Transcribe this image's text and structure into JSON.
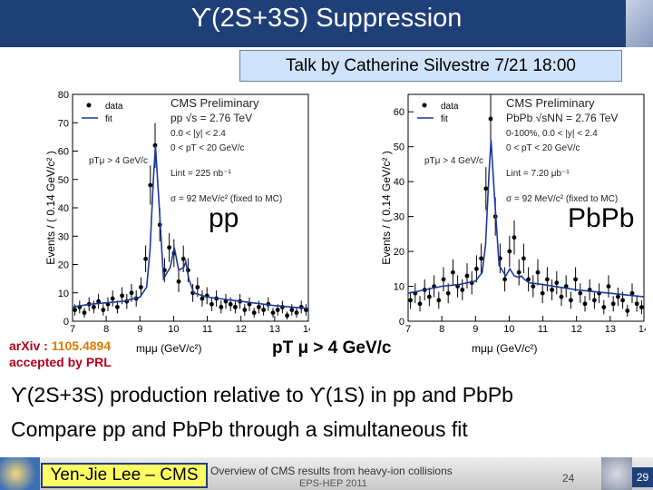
{
  "slide": {
    "title": "ϒ(2S+3S) Suppression",
    "talk_box": "Talk by Catherine Silvestre 7/21 18:00",
    "arxiv_prefix": "arXiv : ",
    "arxiv_number": "1105.4894",
    "arxiv_status": "accepted by PRL",
    "pt_cut": "pT μ > 4 GeV/c",
    "line1": "ϒ(2S+3S) production relative to ϒ(1S) in pp and PbPb",
    "line2": "Compare pp and PbPb through a simultaneous fit"
  },
  "footer": {
    "author": "Yen-Jie Lee – CMS",
    "talk_title": "Overview of CMS results from heavy-ion collisions",
    "conference": "EPS-HEP 2011",
    "slide_number": "24",
    "page_number": "29"
  },
  "colors": {
    "title_bar": "#1f3f78",
    "talk_box": "#cfe3fb",
    "fit_line": "#1a3a9a",
    "arxiv": "#b3001b",
    "author_box": "#ffff66"
  },
  "chart_data": [
    {
      "type": "scatter",
      "panel_label": "pp",
      "ylabel": "Events / ( 0.14 GeV/c² )",
      "xlabel": "mμμ (GeV/c²)",
      "xlim": [
        7,
        14
      ],
      "ylim": [
        0,
        80
      ],
      "x_ticks": [
        "7",
        "8",
        "9",
        "10",
        "11",
        "12",
        "13",
        "14"
      ],
      "y_ticks": [
        "0",
        "10",
        "20",
        "30",
        "40",
        "50",
        "60",
        "70",
        "80"
      ],
      "legend": [
        "data",
        "fit"
      ],
      "annotations": [
        "CMS Preliminary",
        "pp √s = 2.76 TeV",
        "0.0 < |y| < 2.4",
        "0 < pT < 20 GeV/c",
        "pTμ > 4 GeV/c",
        "Lint = 225 nb⁻¹",
        "σ = 92 MeV/c² (fixed to MC)"
      ],
      "series": [
        {
          "values_x": [
            7.07,
            7.21,
            7.35,
            7.49,
            7.63,
            7.77,
            7.91,
            8.05,
            8.19,
            8.33,
            8.47,
            8.61,
            8.75,
            8.89,
            9.03,
            9.17,
            9.31,
            9.45,
            9.59,
            9.73,
            9.87,
            10.01,
            10.15,
            10.29,
            10.43,
            10.57,
            10.71,
            10.85,
            10.99,
            11.13,
            11.27,
            11.41,
            11.55,
            11.69,
            11.83,
            11.97,
            12.11,
            12.25,
            12.39,
            12.53,
            12.67,
            12.81,
            12.95,
            13.09,
            13.23,
            13.37,
            13.51,
            13.65,
            13.79,
            13.93
          ],
          "values_y": [
            4,
            5,
            3,
            6,
            5,
            7,
            4,
            6,
            8,
            5,
            9,
            7,
            10,
            8,
            12,
            22,
            48,
            62,
            34,
            18,
            26,
            24,
            14,
            22,
            18,
            10,
            12,
            8,
            9,
            6,
            8,
            5,
            7,
            6,
            5,
            7,
            4,
            6,
            3,
            5,
            4,
            6,
            3,
            4,
            5,
            2,
            4,
            3,
            5,
            4
          ]
        }
      ],
      "fit": {
        "x": [
          7.0,
          7.5,
          8.0,
          8.5,
          9.0,
          9.2,
          9.3,
          9.4,
          9.46,
          9.55,
          9.7,
          9.9,
          10.02,
          10.15,
          10.3,
          10.36,
          10.45,
          10.6,
          11.0,
          12.0,
          13.0,
          14.0
        ],
        "y": [
          5,
          6,
          6.5,
          7,
          8.5,
          12,
          25,
          50,
          62,
          45,
          15,
          19,
          26,
          18,
          19,
          21,
          15,
          10,
          8.5,
          7,
          5.5,
          4.5
        ]
      }
    },
    {
      "type": "scatter",
      "panel_label": "PbPb",
      "ylabel": "Events / ( 0.14 GeV/c² )",
      "xlabel": "mμμ (GeV/c²)",
      "xlim": [
        7,
        14
      ],
      "ylim": [
        0,
        65
      ],
      "x_ticks": [
        "7",
        "8",
        "9",
        "10",
        "11",
        "12",
        "13",
        "14"
      ],
      "y_ticks": [
        "0",
        "10",
        "20",
        "30",
        "40",
        "50",
        "60"
      ],
      "legend": [
        "data",
        "fit"
      ],
      "annotations": [
        "CMS Preliminary",
        "PbPb √sNN = 2.76 TeV",
        "0-100%, 0.0 < |y| < 2.4",
        "0 < pT < 20 GeV/c",
        "pTμ > 4 GeV/c",
        "Lint = 7.20 μb⁻¹",
        "σ = 92 MeV/c² (fixed to MC)"
      ],
      "series": [
        {
          "values_x": [
            7.07,
            7.21,
            7.35,
            7.49,
            7.63,
            7.77,
            7.91,
            8.05,
            8.19,
            8.33,
            8.47,
            8.61,
            8.75,
            8.89,
            9.03,
            9.17,
            9.31,
            9.45,
            9.59,
            9.73,
            9.87,
            10.01,
            10.15,
            10.29,
            10.43,
            10.57,
            10.71,
            10.85,
            10.99,
            11.13,
            11.27,
            11.41,
            11.55,
            11.69,
            11.83,
            11.97,
            12.11,
            12.25,
            12.39,
            12.53,
            12.67,
            12.81,
            12.95,
            13.09,
            13.23,
            13.37,
            13.51,
            13.65,
            13.79,
            13.93
          ],
          "values_y": [
            6,
            8,
            5,
            9,
            7,
            10,
            6,
            12,
            8,
            14,
            10,
            9,
            13,
            11,
            15,
            18,
            38,
            58,
            30,
            18,
            12,
            20,
            24,
            14,
            18,
            12,
            10,
            14,
            8,
            12,
            9,
            11,
            7,
            10,
            6,
            12,
            8,
            5,
            9,
            6,
            8,
            4,
            10,
            5,
            7,
            6,
            3,
            8,
            5,
            4
          ]
        }
      ],
      "fit": {
        "x": [
          7.0,
          7.5,
          8.0,
          8.5,
          9.0,
          9.2,
          9.3,
          9.4,
          9.46,
          9.55,
          9.7,
          9.9,
          10.02,
          10.15,
          10.3,
          10.36,
          10.45,
          10.6,
          11.0,
          12.0,
          13.0,
          14.0
        ],
        "y": [
          8,
          9,
          10,
          10.5,
          11.5,
          14,
          22,
          42,
          52,
          38,
          16,
          13,
          15,
          13,
          12.5,
          13,
          12,
          11,
          10.5,
          9,
          8,
          7
        ]
      }
    }
  ]
}
